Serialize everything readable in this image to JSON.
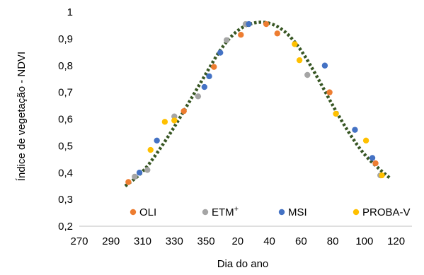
{
  "chart_data": {
    "type": "scatter",
    "title": "",
    "xlabel": "Dia do ano",
    "ylabel": "Índice de vegetação - NDVI",
    "x_tick_labels": [
      "270",
      "290",
      "310",
      "330",
      "350",
      "20",
      "40",
      "60",
      "80",
      "100",
      "120"
    ],
    "y_tick_labels": [
      "0,2",
      "0,3",
      "0,4",
      "0,5",
      "0,6",
      "0,7",
      "0,8",
      "0,9",
      "1"
    ],
    "ylim": [
      0.2,
      1.0
    ],
    "grid": false,
    "legend": "bottom",
    "series": [
      {
        "name": "OLI",
        "color": "#ED7D31",
        "marker": "circle",
        "points": [
          [
            301,
            0.365
          ],
          [
            336,
            0.63
          ],
          [
            355,
            0.795
          ],
          [
            372,
            0.915
          ],
          [
            388,
            0.955
          ],
          [
            395,
            0.92
          ],
          [
            428,
            0.7
          ],
          [
            457,
            0.435
          ]
        ]
      },
      {
        "name": "ETM+",
        "color": "#A5A5A5",
        "marker": "circle",
        "points": [
          [
            305,
            0.385
          ],
          [
            313,
            0.41
          ],
          [
            330,
            0.61
          ],
          [
            345,
            0.685
          ],
          [
            363,
            0.895
          ],
          [
            375,
            0.955
          ],
          [
            414,
            0.765
          ],
          [
            460,
            0.39
          ]
        ]
      },
      {
        "name": "MSI",
        "color": "#4472C4",
        "marker": "circle",
        "points": [
          [
            308,
            0.4
          ],
          [
            319,
            0.52
          ],
          [
            349,
            0.72
          ],
          [
            352,
            0.76
          ],
          [
            359,
            0.848
          ],
          [
            377,
            0.955
          ],
          [
            425,
            0.8
          ],
          [
            444,
            0.56
          ],
          [
            455,
            0.455
          ]
        ]
      },
      {
        "name": "PROBA-V",
        "color": "#FFC000",
        "marker": "circle",
        "points": [
          [
            315,
            0.485
          ],
          [
            324,
            0.59
          ],
          [
            330,
            0.595
          ],
          [
            406,
            0.88
          ],
          [
            409,
            0.82
          ],
          [
            432,
            0.62
          ],
          [
            451,
            0.52
          ],
          [
            461,
            0.39
          ]
        ]
      },
      {
        "name": "",
        "color": "#375623",
        "type": "line",
        "style": "dotted",
        "points": [
          [
            299,
            0.35
          ],
          [
            310,
            0.4
          ],
          [
            320,
            0.48
          ],
          [
            330,
            0.57
          ],
          [
            340,
            0.67
          ],
          [
            350,
            0.77
          ],
          [
            360,
            0.87
          ],
          [
            370,
            0.935
          ],
          [
            380,
            0.962
          ],
          [
            390,
            0.962
          ],
          [
            400,
            0.93
          ],
          [
            410,
            0.86
          ],
          [
            420,
            0.76
          ],
          [
            430,
            0.65
          ],
          [
            440,
            0.55
          ],
          [
            450,
            0.465
          ],
          [
            460,
            0.41
          ],
          [
            466,
            0.38
          ]
        ]
      }
    ]
  }
}
